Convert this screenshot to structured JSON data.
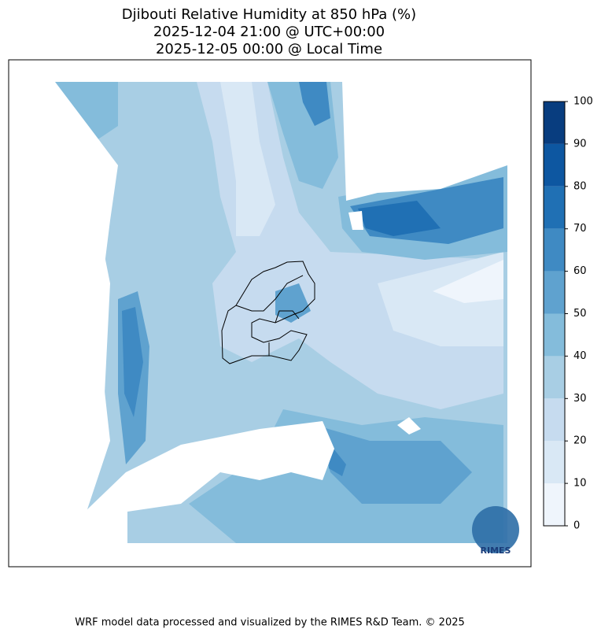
{
  "title": [
    "Djibouti Relative Humidity at 850 hPa (%)",
    "2025-12-04 21:00 @ UTC+00:00",
    "2025-12-05 00:00 @ Local Time"
  ],
  "colorbar": {
    "bounds": [
      0,
      10,
      20,
      30,
      40,
      50,
      60,
      70,
      80,
      90,
      100
    ],
    "colors": [
      "#eff5fc",
      "#d9e8f5",
      "#c6dbef",
      "#a8cee4",
      "#84bcdb",
      "#5fa2cf",
      "#3f8ac3",
      "#2070b4",
      "#0d57a1",
      "#083d7f"
    ]
  },
  "logo": "RIMES",
  "footer": "WRF model data processed and visualized by the RIMES R&D Team. © 2025"
}
